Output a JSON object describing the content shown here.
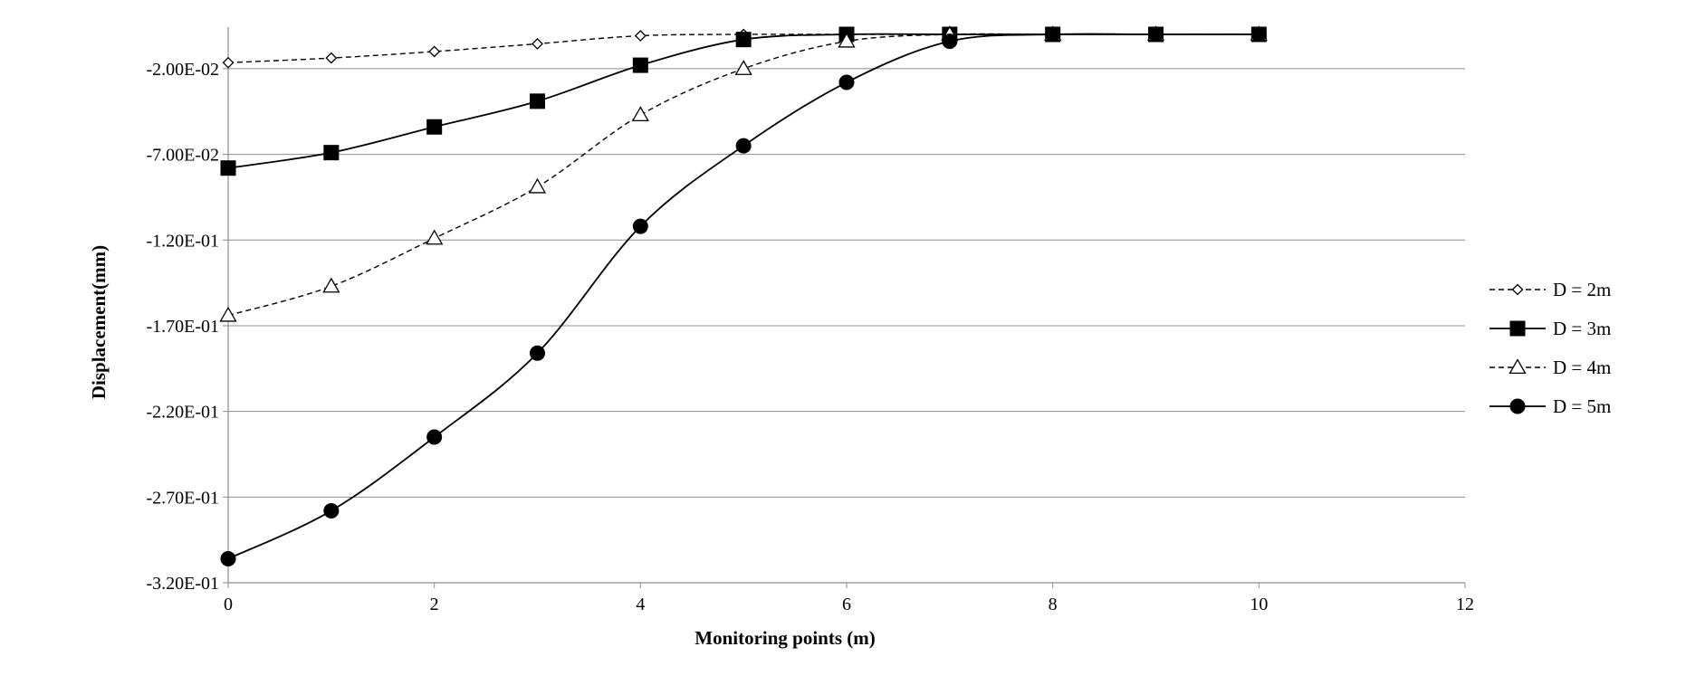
{
  "chart_data": {
    "type": "line",
    "title": "",
    "xlabel": "Monitoring points (m)",
    "ylabel": "Displacement(mm)",
    "xlim": [
      0,
      12
    ],
    "ylim": [
      -0.32,
      0.0
    ],
    "x_ticks": [
      "0",
      "2",
      "4",
      "6",
      "8",
      "10",
      "12"
    ],
    "y_ticks": [
      "-2.00E-02",
      "-7.00E-02",
      "-1.20E-01",
      "-1.70E-01",
      "-2.20E-01",
      "-2.70E-01",
      "-3.20E-01"
    ],
    "y_tick_values": [
      -0.02,
      -0.07,
      -0.12,
      -0.17,
      -0.22,
      -0.27,
      -0.32
    ],
    "grid": "horizontal",
    "legend_position": "right",
    "series": [
      {
        "name": "D = 2m",
        "marker": "diamond-open",
        "line": "dashed",
        "x": [
          0,
          1,
          2,
          3,
          4,
          5,
          6,
          7,
          8,
          9,
          10
        ],
        "y": [
          -0.0165,
          -0.0138,
          -0.01,
          -0.0055,
          -0.0008,
          0.0,
          0.0,
          0.0,
          0.0,
          0.0,
          0.0
        ]
      },
      {
        "name": "D = 3m",
        "marker": "square-filled",
        "line": "solid",
        "x": [
          0,
          1,
          2,
          3,
          4,
          5,
          6,
          7,
          8,
          9,
          10
        ],
        "y": [
          -0.078,
          -0.069,
          -0.054,
          -0.039,
          -0.018,
          -0.003,
          0.0,
          0.0,
          0.0,
          0.0,
          0.0
        ]
      },
      {
        "name": "D = 4m",
        "marker": "triangle-open",
        "line": "dashed",
        "x": [
          0,
          1,
          2,
          3,
          4,
          5,
          6,
          7,
          8,
          9,
          10
        ],
        "y": [
          -0.164,
          -0.147,
          -0.119,
          -0.089,
          -0.047,
          -0.02,
          -0.004,
          0.0,
          0.0,
          0.0,
          0.0
        ]
      },
      {
        "name": "D = 5m",
        "marker": "circle-filled",
        "line": "solid",
        "x": [
          0,
          1,
          2,
          3,
          4,
          5,
          6,
          7,
          8,
          9,
          10
        ],
        "y": [
          -0.306,
          -0.278,
          -0.235,
          -0.186,
          -0.112,
          -0.065,
          -0.028,
          -0.004,
          0.0,
          0.0,
          0.0
        ]
      }
    ]
  }
}
